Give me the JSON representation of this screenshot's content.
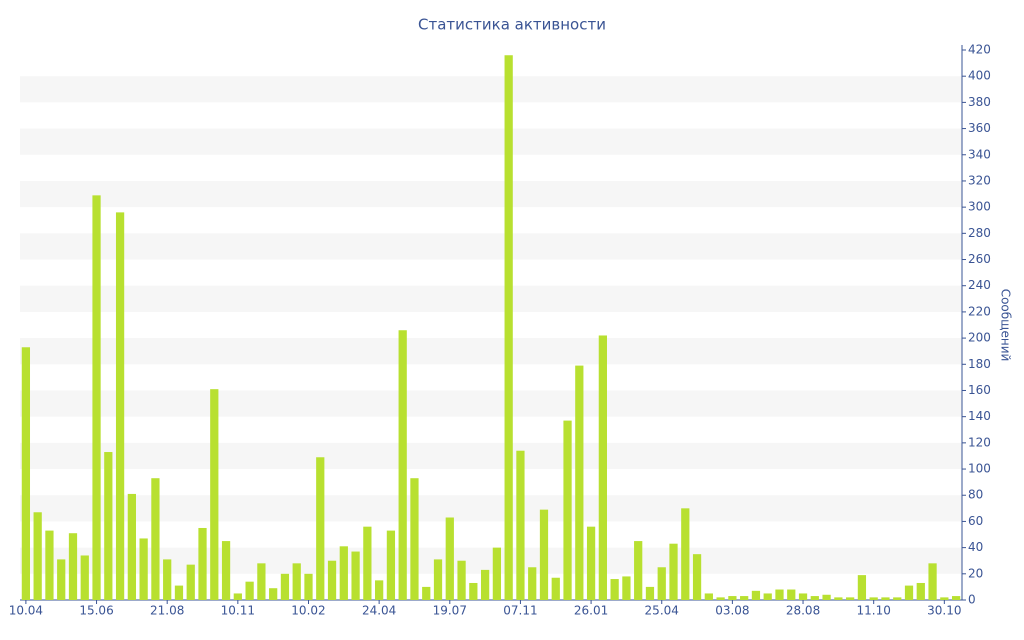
{
  "chart_data": {
    "type": "bar",
    "title": "Статистика активности",
    "y_label": "Сообщений",
    "categories": [
      "10.04",
      null,
      null,
      null,
      null,
      null,
      "15.06",
      null,
      null,
      null,
      null,
      null,
      "21.08",
      null,
      null,
      null,
      null,
      null,
      "10.11",
      null,
      null,
      null,
      null,
      null,
      "10.02",
      null,
      null,
      null,
      null,
      null,
      "24.04",
      null,
      null,
      null,
      null,
      null,
      "19.07",
      null,
      null,
      null,
      null,
      null,
      "07.11",
      null,
      null,
      null,
      null,
      null,
      "26.01",
      null,
      null,
      null,
      null,
      null,
      "25.04",
      null,
      null,
      null,
      null,
      null,
      "03.08",
      null,
      null,
      null,
      null,
      null,
      "28.08",
      null,
      null,
      null,
      null,
      null,
      "11.10",
      null,
      null,
      null,
      null,
      null,
      "30.10",
      null
    ],
    "values": [
      193,
      67,
      53,
      31,
      51,
      34,
      309,
      113,
      296,
      81,
      47,
      93,
      31,
      11,
      27,
      55,
      161,
      45,
      5,
      14,
      28,
      9,
      20,
      28,
      20,
      109,
      30,
      41,
      37,
      56,
      15,
      53,
      206,
      93,
      10,
      31,
      63,
      30,
      13,
      23,
      40,
      416,
      114,
      25,
      69,
      17,
      137,
      179,
      56,
      202,
      16,
      18,
      45,
      10,
      25,
      43,
      70,
      35,
      5,
      2,
      3,
      3,
      7,
      5,
      8,
      8,
      5,
      3,
      4,
      2,
      2,
      19,
      2,
      2,
      2,
      11,
      13,
      28,
      2,
      3
    ],
    "color": "#b8e030",
    "ylim": [
      0,
      420
    ],
    "yticks": [
      0,
      20,
      40,
      60,
      80,
      100,
      120,
      140,
      160,
      180,
      200,
      220,
      240,
      260,
      280,
      300,
      320,
      340,
      360,
      380,
      400,
      420
    ],
    "y_axis_side": "right",
    "grid_bands": true
  }
}
